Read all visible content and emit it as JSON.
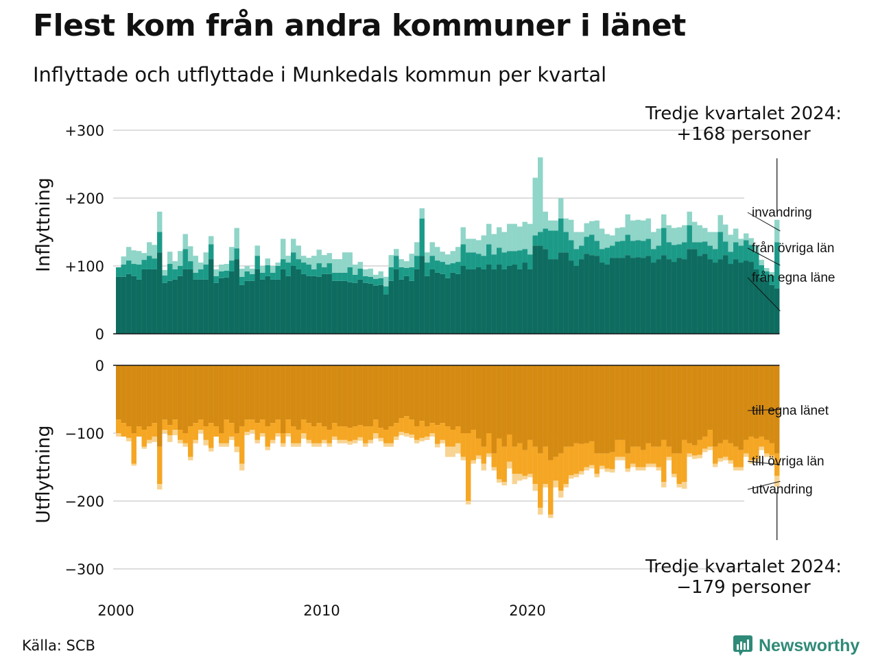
{
  "title": "Flest kom från andra kommuner i länet",
  "subtitle": "Inflyttade och utflyttade i Munkedals kommun per kvartal",
  "source": "Källa: SCB",
  "brand": "Newsworthy",
  "brand_icon": "newsworthy-logo-icon",
  "colors": {
    "in_own_county": "#0e6b5f",
    "in_other_counties": "#1c9a88",
    "in_immigration": "#8fd5c8",
    "out_own_county": "#d58a12",
    "out_other_counties": "#f5a623",
    "out_emigration": "#f8d493",
    "grid": "#dddddd"
  },
  "chart_data": {
    "type": "bar",
    "stacked": true,
    "x_start": "2000 Q1",
    "x_end": "2024 Q3",
    "xticks": [
      "2000",
      "2010",
      "2020"
    ],
    "ylim": [
      -300,
      300
    ],
    "grid": true,
    "inflow": {
      "ylabel": "Inflyttning",
      "yticks": [
        "+300",
        "+200",
        "+100",
        "0"
      ],
      "latest_label": "Tredje kvartalet 2024:",
      "latest_value": "+168 personer",
      "series": [
        {
          "name": "från egna läne",
          "values": [
            84,
            84,
            88,
            85,
            80,
            95,
            95,
            95,
            120,
            75,
            78,
            80,
            85,
            95,
            95,
            80,
            80,
            80,
            110,
            75,
            82,
            83,
            92,
            110,
            72,
            78,
            78,
            95,
            80,
            85,
            80,
            80,
            95,
            85,
            100,
            95,
            88,
            85,
            85,
            84,
            88,
            88,
            78,
            78,
            78,
            76,
            75,
            80,
            75,
            74,
            71,
            72,
            58,
            78,
            95,
            80,
            85,
            78,
            95,
            115,
            85,
            95,
            90,
            88,
            82,
            90,
            88,
            100,
            95,
            95,
            98,
            95,
            102,
            95,
            102,
            95,
            100,
            102,
            95,
            105,
            95,
            130,
            130,
            125,
            110,
            110,
            120,
            120,
            108,
            100,
            110,
            118,
            116,
            115,
            105,
            102,
            112,
            112,
            112,
            116,
            112,
            113,
            112,
            115,
            105,
            110,
            116,
            110,
            106,
            112,
            110,
            125,
            125,
            115,
            118,
            110,
            105,
            110,
            116,
            103,
            110,
            105,
            108,
            106,
            95,
            83,
            78,
            72,
            67
          ]
        },
        {
          "name": "från övriga län",
          "values": [
            14,
            18,
            20,
            18,
            22,
            14,
            20,
            16,
            30,
            11,
            25,
            15,
            15,
            30,
            12,
            10,
            15,
            22,
            22,
            10,
            10,
            10,
            16,
            16,
            12,
            14,
            10,
            20,
            10,
            16,
            10,
            20,
            15,
            20,
            20,
            15,
            17,
            17,
            10,
            20,
            10,
            16,
            12,
            12,
            12,
            22,
            12,
            16,
            10,
            10,
            10,
            10,
            12,
            20,
            20,
            18,
            12,
            20,
            20,
            55,
            20,
            20,
            18,
            18,
            20,
            14,
            18,
            32,
            25,
            25,
            20,
            20,
            30,
            22,
            25,
            25,
            22,
            20,
            28,
            20,
            22,
            15,
            20,
            30,
            42,
            42,
            50,
            30,
            30,
            25,
            20,
            25,
            30,
            22,
            20,
            25,
            18,
            24,
            25,
            30,
            25,
            25,
            25,
            25,
            20,
            20,
            40,
            25,
            25,
            20,
            25,
            35,
            10,
            20,
            18,
            20,
            20,
            40,
            20,
            18,
            25,
            25,
            30,
            25,
            25,
            18,
            14,
            14,
            68
          ]
        },
        {
          "name": "invandring",
          "values": [
            0,
            12,
            20,
            20,
            20,
            10,
            20,
            20,
            30,
            8,
            18,
            12,
            22,
            22,
            22,
            25,
            10,
            18,
            12,
            10,
            10,
            10,
            20,
            30,
            12,
            8,
            8,
            15,
            10,
            10,
            10,
            5,
            30,
            10,
            20,
            20,
            10,
            10,
            20,
            20,
            18,
            15,
            20,
            20,
            30,
            22,
            15,
            10,
            10,
            12,
            6,
            10,
            14,
            18,
            10,
            12,
            10,
            20,
            20,
            15,
            15,
            20,
            20,
            15,
            15,
            18,
            22,
            25,
            20,
            20,
            20,
            30,
            30,
            30,
            30,
            30,
            40,
            40,
            35,
            40,
            45,
            85,
            110,
            25,
            15,
            15,
            30,
            20,
            30,
            25,
            20,
            20,
            20,
            30,
            30,
            20,
            15,
            20,
            20,
            30,
            30,
            30,
            30,
            30,
            25,
            25,
            20,
            25,
            25,
            25,
            25,
            20,
            30,
            25,
            20,
            20,
            25,
            25,
            25,
            25,
            20,
            10,
            10,
            10,
            10,
            8,
            5,
            5,
            33
          ]
        }
      ]
    },
    "outflow": {
      "ylabel": "Utflyttning",
      "yticks": [
        "0",
        "−100",
        "−200",
        "−300"
      ],
      "latest_label": "Tredje kvartalet 2024:",
      "latest_value": "−179 personer",
      "series": [
        {
          "name": "till egna länet",
          "values": [
            80,
            85,
            90,
            100,
            90,
            95,
            90,
            85,
            120,
            80,
            88,
            80,
            95,
            100,
            90,
            85,
            80,
            90,
            85,
            90,
            100,
            80,
            85,
            100,
            90,
            80,
            80,
            85,
            80,
            90,
            85,
            80,
            100,
            80,
            90,
            95,
            80,
            85,
            90,
            85,
            90,
            95,
            85,
            90,
            90,
            92,
            90,
            88,
            90,
            90,
            80,
            92,
            95,
            90,
            85,
            78,
            75,
            80,
            90,
            82,
            90,
            85,
            88,
            85,
            90,
            95,
            90,
            100,
            100,
            95,
            108,
            120,
            100,
            130,
            108,
            120,
            102,
            120,
            115,
            125,
            110,
            120,
            130,
            120,
            140,
            135,
            130,
            120,
            120,
            115,
            116,
            115,
            112,
            130,
            130,
            130,
            128,
            110,
            110,
            130,
            120,
            120,
            125,
            115,
            120,
            120,
            110,
            120,
            130,
            130,
            110,
            115,
            118,
            110,
            105,
            95,
            120,
            115,
            110,
            115,
            120,
            125,
            110,
            105,
            108,
            105,
            110,
            115,
            130
          ]
        },
        {
          "name": "till övriga län",
          "values": [
            20,
            20,
            17,
            45,
            15,
            25,
            20,
            20,
            55,
            15,
            15,
            15,
            15,
            15,
            45,
            25,
            15,
            20,
            37,
            15,
            15,
            35,
            20,
            20,
            55,
            18,
            15,
            25,
            20,
            30,
            25,
            20,
            15,
            20,
            25,
            20,
            20,
            25,
            25,
            30,
            20,
            20,
            20,
            20,
            20,
            20,
            20,
            18,
            25,
            20,
            20,
            15,
            20,
            25,
            20,
            20,
            25,
            22,
            20,
            25,
            15,
            15,
            28,
            25,
            30,
            25,
            25,
            35,
            100,
            45,
            25,
            25,
            30,
            20,
            60,
            52,
            40,
            40,
            45,
            38,
            50,
            55,
            80,
            55,
            80,
            35,
            55,
            55,
            42,
            45,
            40,
            35,
            35,
            30,
            18,
            22,
            25,
            25,
            25,
            22,
            25,
            30,
            25,
            30,
            25,
            30,
            62,
            15,
            30,
            45,
            62,
            15,
            15,
            22,
            18,
            25,
            25,
            22,
            25,
            25,
            30,
            25,
            20,
            35,
            30,
            15,
            20,
            18,
            33
          ]
        },
        {
          "name": "utvandring",
          "values": [
            5,
            0,
            5,
            3,
            0,
            3,
            5,
            8,
            8,
            5,
            10,
            8,
            5,
            5,
            5,
            5,
            5,
            8,
            5,
            0,
            5,
            5,
            5,
            8,
            10,
            5,
            5,
            5,
            5,
            5,
            5,
            5,
            5,
            5,
            5,
            5,
            8,
            5,
            5,
            5,
            5,
            5,
            5,
            5,
            5,
            5,
            5,
            5,
            5,
            5,
            8,
            5,
            5,
            5,
            5,
            5,
            5,
            5,
            5,
            5,
            5,
            5,
            5,
            5,
            15,
            15,
            15,
            5,
            5,
            5,
            5,
            10,
            5,
            5,
            5,
            5,
            10,
            15,
            10,
            5,
            5,
            10,
            10,
            5,
            5,
            10,
            10,
            5,
            5,
            5,
            5,
            5,
            5,
            5,
            5,
            5,
            5,
            5,
            5,
            5,
            5,
            5,
            5,
            5,
            5,
            5,
            8,
            5,
            5,
            5,
            10,
            5,
            5,
            5,
            5,
            5,
            5,
            5,
            5,
            5,
            5,
            5,
            5,
            5,
            5,
            5,
            5,
            5,
            16
          ]
        }
      ]
    }
  }
}
